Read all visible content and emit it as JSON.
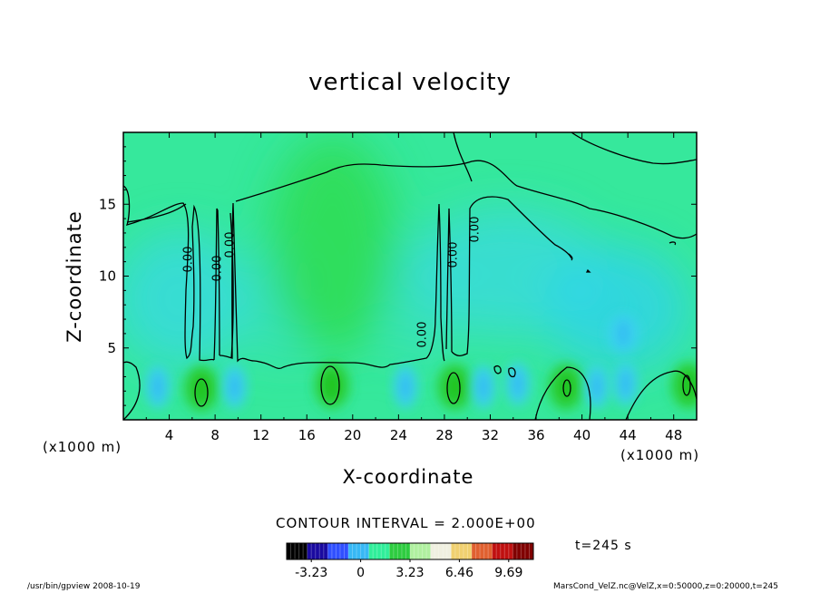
{
  "chart_data": {
    "type": "heatmap",
    "title": "vertical velocity",
    "xlabel": "X-coordinate",
    "ylabel": "Z-coordinate",
    "x_unit_left": "(x1000 m)",
    "x_unit_right": "(x1000 m)",
    "x_ticks": [
      "4",
      "8",
      "12",
      "16",
      "20",
      "24",
      "28",
      "32",
      "36",
      "40",
      "44",
      "48"
    ],
    "x_tick_values": [
      4,
      8,
      12,
      16,
      20,
      24,
      28,
      32,
      36,
      40,
      44,
      48
    ],
    "y_ticks": [
      "5",
      "10",
      "15"
    ],
    "y_tick_values": [
      5,
      10,
      15
    ],
    "xlim": [
      0,
      50
    ],
    "ylim": [
      0,
      20
    ],
    "contour_label": "0.00",
    "contour_interval": "CONTOUR INTERVAL = 2.000E+00",
    "time_label": "t=245 s",
    "colorbar": {
      "ticks": [
        "-3.23",
        "0",
        "3.23",
        "6.46",
        "9.69"
      ],
      "values": [
        -3.23,
        0,
        3.23,
        6.46,
        9.69
      ],
      "range": [
        -4.845,
        11.305
      ],
      "colors": [
        "#000000",
        "#1a0aa0",
        "#3050ff",
        "#37b8f5",
        "#30ee9a",
        "#2ecc40",
        "#b0f0a0",
        "#f0f0e0",
        "#f0d070",
        "#e06030",
        "#c01010",
        "#800000"
      ]
    },
    "updrafts": [
      {
        "x": 6.8,
        "z": 2.2,
        "w": 3.0
      },
      {
        "x": 18.2,
        "z": 2.4,
        "w": 3.5
      },
      {
        "x": 28.9,
        "z": 2.3,
        "w": 3.0
      },
      {
        "x": 38.6,
        "z": 2.3,
        "w": 3.0
      },
      {
        "x": 49.3,
        "z": 2.4,
        "w": 2.8
      },
      {
        "x": 18.5,
        "z": 10.5,
        "w": 1.2
      }
    ],
    "downdrafts": [
      {
        "x": 3.0,
        "z": 2.3,
        "w": -1.2
      },
      {
        "x": 9.7,
        "z": 2.3,
        "w": -1.5
      },
      {
        "x": 24.6,
        "z": 2.3,
        "w": -1.2
      },
      {
        "x": 31.4,
        "z": 2.3,
        "w": -1.2
      },
      {
        "x": 34.4,
        "z": 2.5,
        "w": -1.0
      },
      {
        "x": 41.3,
        "z": 2.3,
        "w": -1.5
      },
      {
        "x": 43.8,
        "z": 2.5,
        "w": -1.2
      },
      {
        "x": 43.6,
        "z": 6.0,
        "w": -1.0
      }
    ]
  },
  "footer": {
    "left": "/usr/bin/gpview   2008-10-19",
    "right": "MarsCond_VelZ.nc@VelZ,x=0:50000,z=0:20000,t=245"
  }
}
